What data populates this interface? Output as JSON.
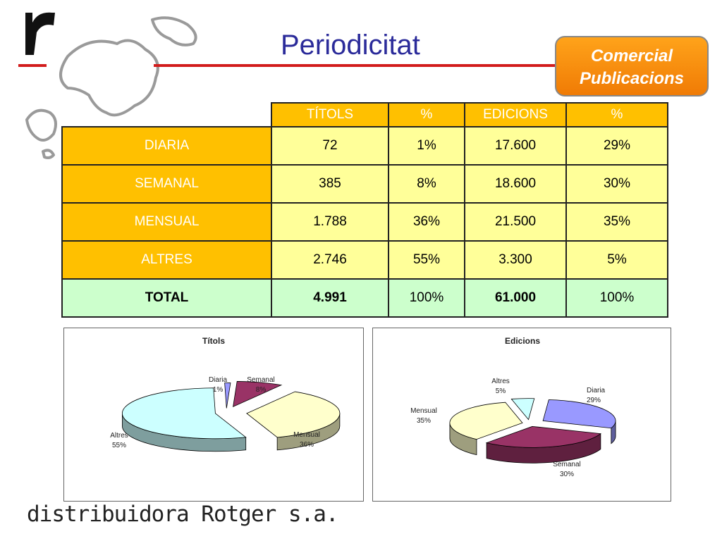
{
  "header": {
    "title": "Periodicitat",
    "badge_line1": "Comercial",
    "badge_line2": "Publicacions"
  },
  "table": {
    "headers": [
      "TÍTOLS",
      "%",
      "EDICIONS",
      "%"
    ],
    "rows": [
      {
        "label": "DIARIA",
        "titols": "72",
        "titols_pct": "1%",
        "edicions": "17.600",
        "edicions_pct": "29%"
      },
      {
        "label": "SEMANAL",
        "titols": "385",
        "titols_pct": "8%",
        "edicions": "18.600",
        "edicions_pct": "30%"
      },
      {
        "label": "MENSUAL",
        "titols": "1.788",
        "titols_pct": "36%",
        "edicions": "21.500",
        "edicions_pct": "35%"
      },
      {
        "label": "ALTRES",
        "titols": "2.746",
        "titols_pct": "55%",
        "edicions": "3.300",
        "edicions_pct": "5%"
      }
    ],
    "total": {
      "label": "TOTAL",
      "titols": "4.991",
      "titols_pct": "100%",
      "edicions": "61.000",
      "edicions_pct": "100%"
    }
  },
  "colors": {
    "header_bg": "#ffc000",
    "cell_bg": "#ffff99",
    "total_bg": "#ccffcc",
    "title_color": "#2b2b9a",
    "accent_red": "#d21c1c",
    "slice_diaria": "#9999ff",
    "slice_semanal": "#993366",
    "slice_mensual": "#ffffcc",
    "slice_altres": "#ccffff"
  },
  "chart_data": [
    {
      "type": "pie",
      "title": "Títols",
      "categories": [
        "Diaria",
        "Semanal",
        "Mensual",
        "Altres"
      ],
      "values": [
        1,
        8,
        36,
        55
      ],
      "labels": [
        "1%",
        "8%",
        "36%",
        "55%"
      ]
    },
    {
      "type": "pie",
      "title": "Edicions",
      "categories": [
        "Diaria",
        "Semanal",
        "Mensual",
        "Altres"
      ],
      "values": [
        29,
        30,
        35,
        5
      ],
      "labels": [
        "29%",
        "30%",
        "35%",
        "5%"
      ]
    }
  ],
  "footer": {
    "brand": "distribuidora Rotger s.a."
  }
}
